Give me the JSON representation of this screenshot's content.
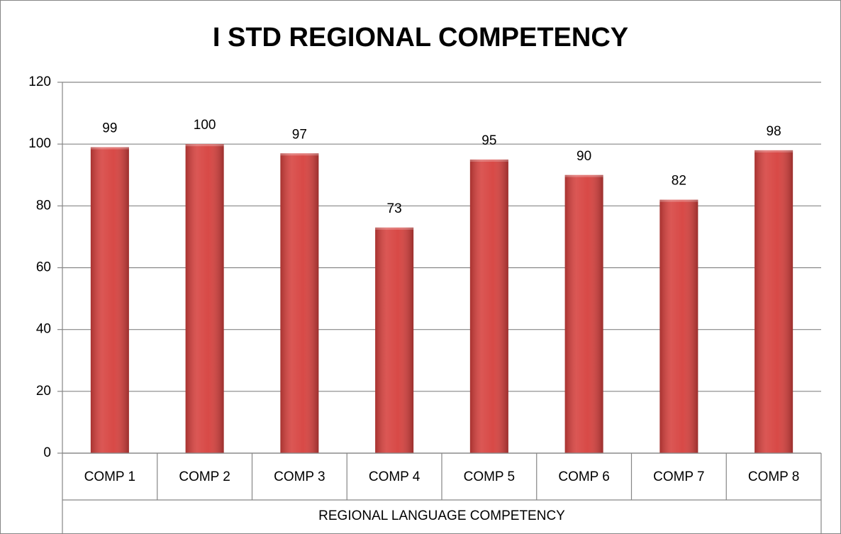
{
  "chart_data": {
    "type": "bar",
    "title": "I STD REGIONAL COMPETENCY",
    "categories": [
      "COMP 1",
      "COMP 2",
      "COMP 3",
      "COMP 4",
      "COMP 5",
      "COMP 6",
      "COMP 7",
      "COMP 8"
    ],
    "values": [
      99,
      100,
      97,
      73,
      95,
      90,
      82,
      98
    ],
    "xlabel": "REGIONAL LANGUAGE COMPETENCY",
    "color": "#d6403d",
    "ylim": [
      0,
      120
    ],
    "yticks": [
      0,
      20,
      40,
      60,
      80,
      100,
      120
    ],
    "grid": true
  }
}
